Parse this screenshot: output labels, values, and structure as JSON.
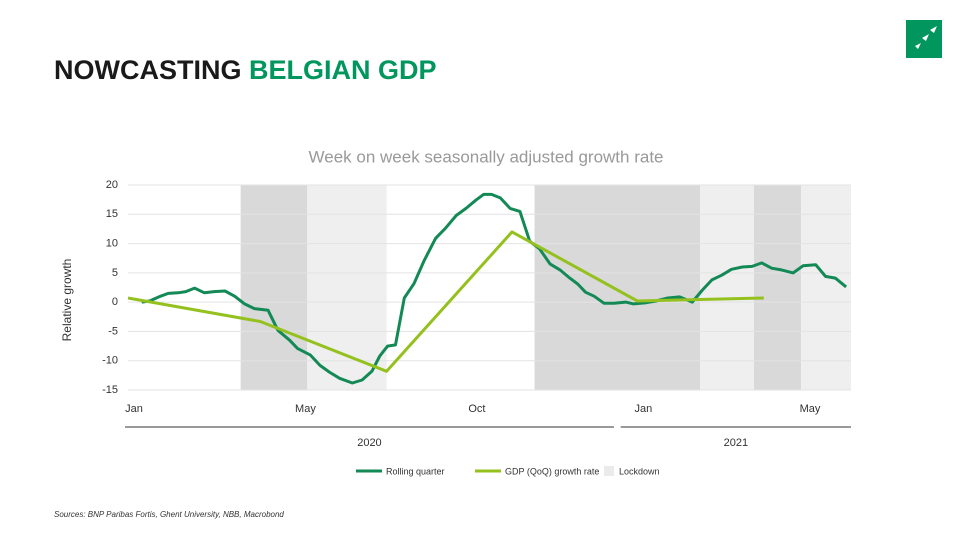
{
  "header": {
    "title_main": "NOWCASTING",
    "title_accent": "BELGIAN GDP"
  },
  "chart_data": {
    "type": "line",
    "title": "Week on week seasonally adjusted growth rate",
    "y_label": "Relative growth",
    "xlim": [
      0,
      73.8
    ],
    "xticks": [
      {
        "value": 0,
        "label": "Jan"
      },
      {
        "value": 17.5,
        "label": "May"
      },
      {
        "value": 35,
        "label": "Oct"
      },
      {
        "value": 52,
        "label": "Jan"
      },
      {
        "value": 69,
        "label": "May"
      }
    ],
    "ylim": [
      -15,
      20
    ],
    "yticks": [
      -15,
      -10,
      -5,
      0,
      5,
      10,
      15,
      20
    ],
    "grid": true,
    "years": [
      {
        "label": "2020",
        "range": [
          0,
          49.6
        ]
      },
      {
        "label": "2021",
        "range": [
          50.6,
          73.8
        ]
      }
    ],
    "band_name": "Lockdown",
    "band_legend_color": "#ebebeb",
    "bands": [
      {
        "range": [
          11.5,
          18.3
        ],
        "color": "#d9d9d9"
      },
      {
        "range": [
          18.3,
          26.4
        ],
        "color": "#efefef"
      },
      {
        "range": [
          41.5,
          58.4
        ],
        "color": "#d9d9d9"
      },
      {
        "range": [
          58.4,
          63.9
        ],
        "color": "#efefef"
      },
      {
        "range": [
          63.9,
          68.7
        ],
        "color": "#d9d9d9"
      },
      {
        "range": [
          68.7,
          73.8
        ],
        "color": "#efefef"
      }
    ],
    "series": [
      {
        "name": "Rolling quarter",
        "color": "#138a55",
        "x": [
          1.4,
          2.2,
          3.3,
          4.1,
          5.1,
          5.9,
          6.8,
          7.8,
          8.8,
          9.9,
          10.9,
          11.9,
          12.9,
          14.3,
          15.3,
          16.5,
          17.3,
          18.6,
          19.6,
          20.6,
          21.6,
          22.9,
          23.9,
          24.9,
          25.7,
          26.5,
          27.3,
          28.2,
          29.2,
          30.2,
          31.4,
          32.4,
          33.5,
          34.5,
          35.5,
          36.3,
          37.1,
          38,
          39,
          40,
          41,
          42,
          43.1,
          44.1,
          45.1,
          45.9,
          46.7,
          47.6,
          48.6,
          49.6,
          50.8,
          51.6,
          52.9,
          53.9,
          55.1,
          56.3,
          57.6,
          58.6,
          59.6,
          60.6,
          61.6,
          62.7,
          63.7,
          64.7,
          65.7,
          66.7,
          67.9,
          68.9,
          70.2,
          71.2,
          72.2,
          73.3
        ],
        "values": [
          0,
          0.2,
          1,
          1.5,
          1.6,
          1.8,
          2.4,
          1.6,
          1.8,
          1.9,
          1.0,
          -0.3,
          -1.1,
          -1.4,
          -4.8,
          -6.5,
          -7.9,
          -9,
          -10.8,
          -12,
          -13,
          -13.8,
          -13.3,
          -11.8,
          -9.2,
          -7.5,
          -7.3,
          0.7,
          3.2,
          7,
          10.9,
          12.6,
          14.8,
          16,
          17.4,
          18.4,
          18.4,
          17.8,
          16,
          15.5,
          10.4,
          9.1,
          6.5,
          5.5,
          4.1,
          3.1,
          1.7,
          1,
          -0.2,
          -0.2,
          0,
          -0.3,
          -0.1,
          0.2,
          0.7,
          0.9,
          0,
          2,
          3.8,
          4.6,
          5.6,
          6,
          6.1,
          6.7,
          5.8,
          5.5,
          5,
          6.2,
          6.4,
          4.4,
          4.1,
          2.6
        ]
      },
      {
        "name": "GDP (QoQ) growth rate",
        "color": "#95c11f",
        "x": [
          0,
          13.5,
          26.4,
          39.2,
          52,
          64.9
        ],
        "values": [
          0.7,
          -3.3,
          -11.8,
          12,
          0.2,
          0.7
        ]
      }
    ]
  },
  "source": "Sources: BNP Paribas Fortis, Ghent University, NBB, Macrobond"
}
